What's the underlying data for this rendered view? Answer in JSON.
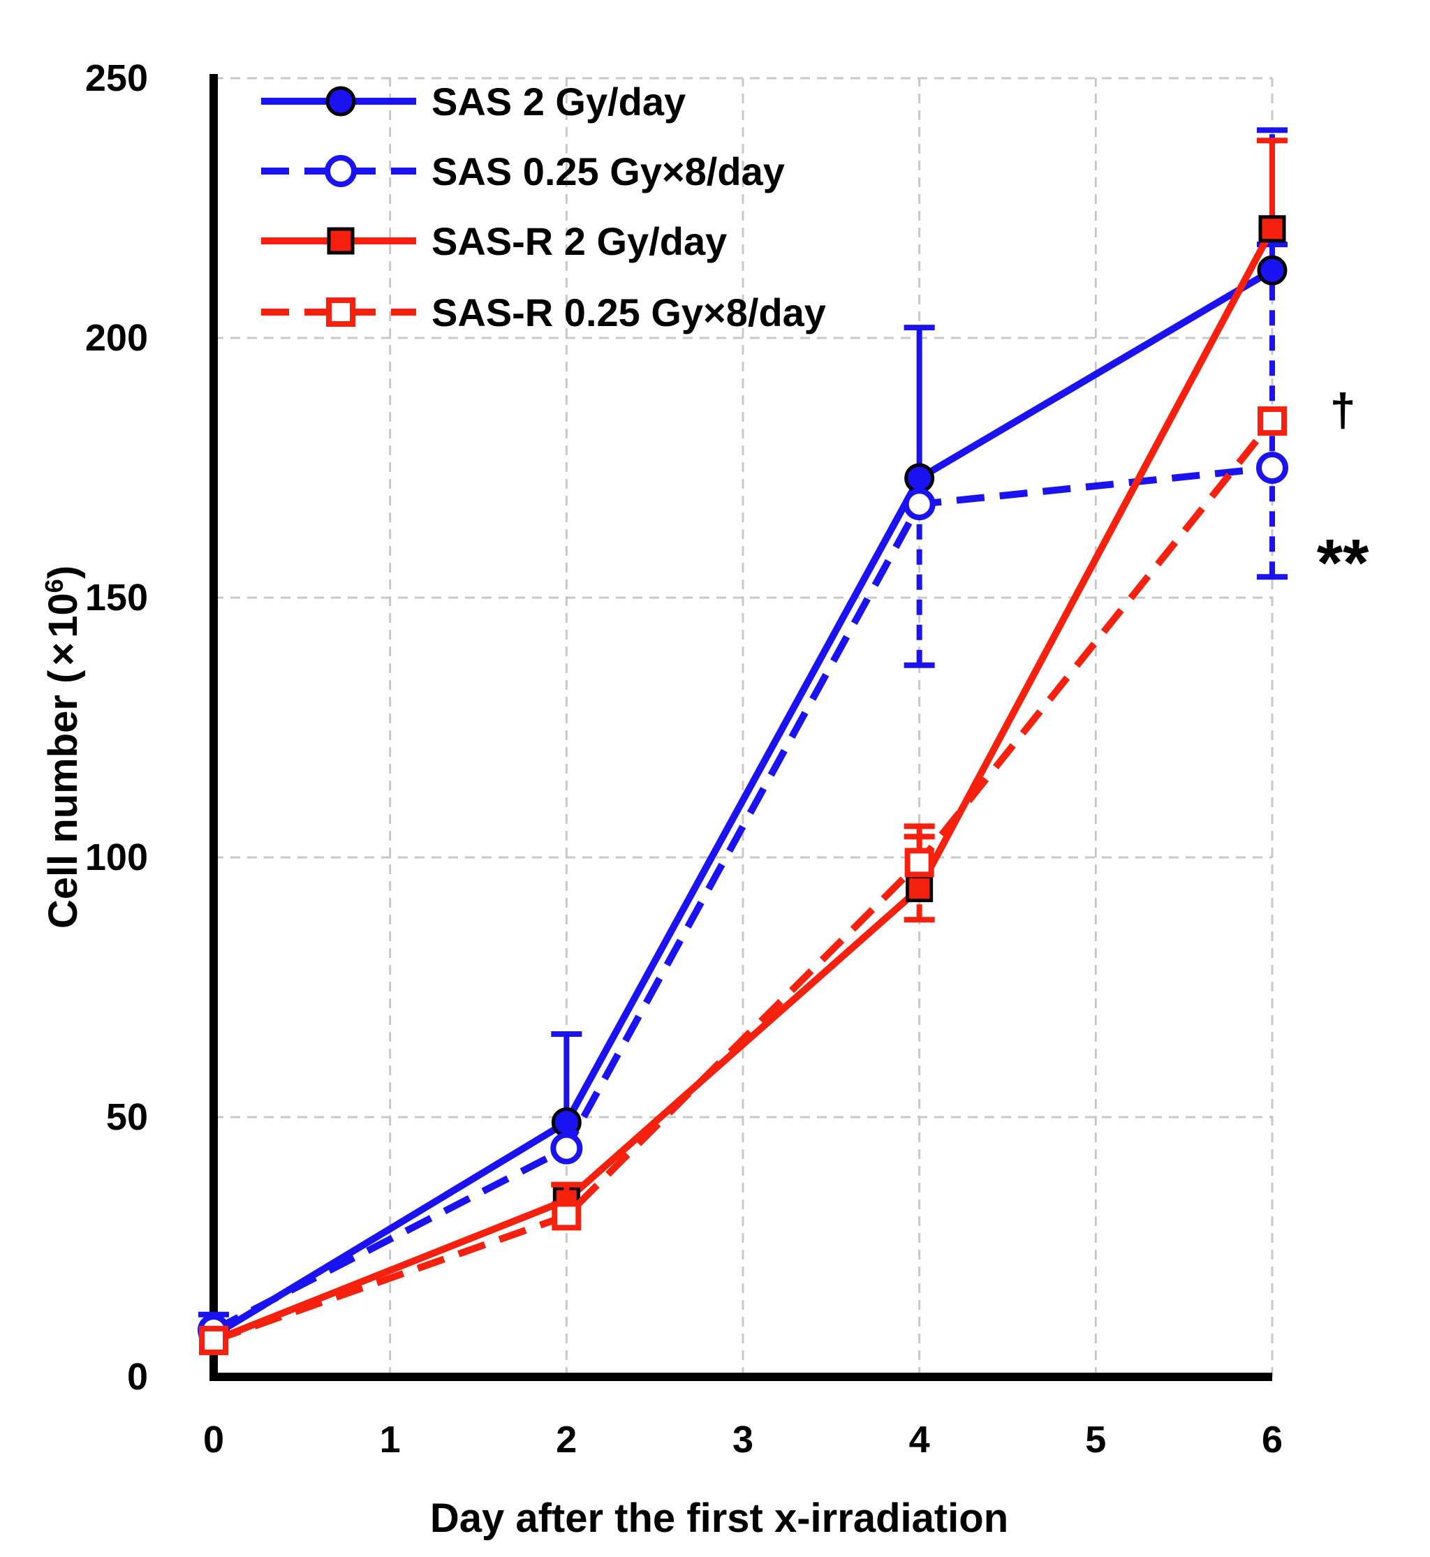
{
  "chart_data": {
    "type": "line",
    "title": "",
    "xlabel": "Day after the first x-irradiation",
    "ylabel_main": "Cell number (",
    "ylabel_times": "×",
    "ylabel_base": "10",
    "ylabel_exp": "6",
    "ylabel_close": ")",
    "xlim": [
      0,
      6
    ],
    "ylim": [
      0,
      250
    ],
    "x_ticks": [
      "0",
      "1",
      "2",
      "3",
      "4",
      "5",
      "6"
    ],
    "y_ticks": [
      "0",
      "50",
      "100",
      "150",
      "200",
      "250"
    ],
    "grid": true,
    "legend_position": "top-left",
    "series": [
      {
        "name": "SAS 2 Gy/day",
        "color": "#1a12f0",
        "dashed": false,
        "marker": "circle-filled",
        "x": [
          0,
          2,
          4,
          6
        ],
        "y": [
          8,
          49,
          173,
          213
        ],
        "error_upper": [
          12,
          66,
          202,
          218
        ]
      },
      {
        "name": "SAS 0.25 Gy×8/day",
        "color": "#1a12f0",
        "dashed": true,
        "marker": "circle-open",
        "x": [
          0,
          2,
          4,
          6
        ],
        "y": [
          9,
          44,
          168,
          175
        ],
        "error_lower": [
          9,
          44,
          137,
          154
        ],
        "error_upper": [
          9,
          44,
          168,
          240
        ]
      },
      {
        "name": "SAS-R 2 Gy/day",
        "color": "#f5200e",
        "dashed": false,
        "marker": "square-filled",
        "x": [
          0,
          2,
          4,
          6
        ],
        "y": [
          7,
          34,
          94,
          221
        ],
        "error_upper": [
          7,
          37,
          104,
          238
        ]
      },
      {
        "name": "SAS-R 0.25 Gy×8/day",
        "color": "#f5200e",
        "dashed": true,
        "marker": "square-open",
        "x": [
          0,
          2,
          4,
          6
        ],
        "y": [
          7,
          31,
          99,
          184
        ],
        "error_lower": [
          7,
          31,
          88,
          184
        ],
        "error_upper": [
          7,
          37,
          106,
          184
        ]
      }
    ],
    "annotations": [
      {
        "text": "†",
        "x": 6.4,
        "y": 186
      },
      {
        "text": "**",
        "x": 6.4,
        "y": 159
      }
    ]
  }
}
